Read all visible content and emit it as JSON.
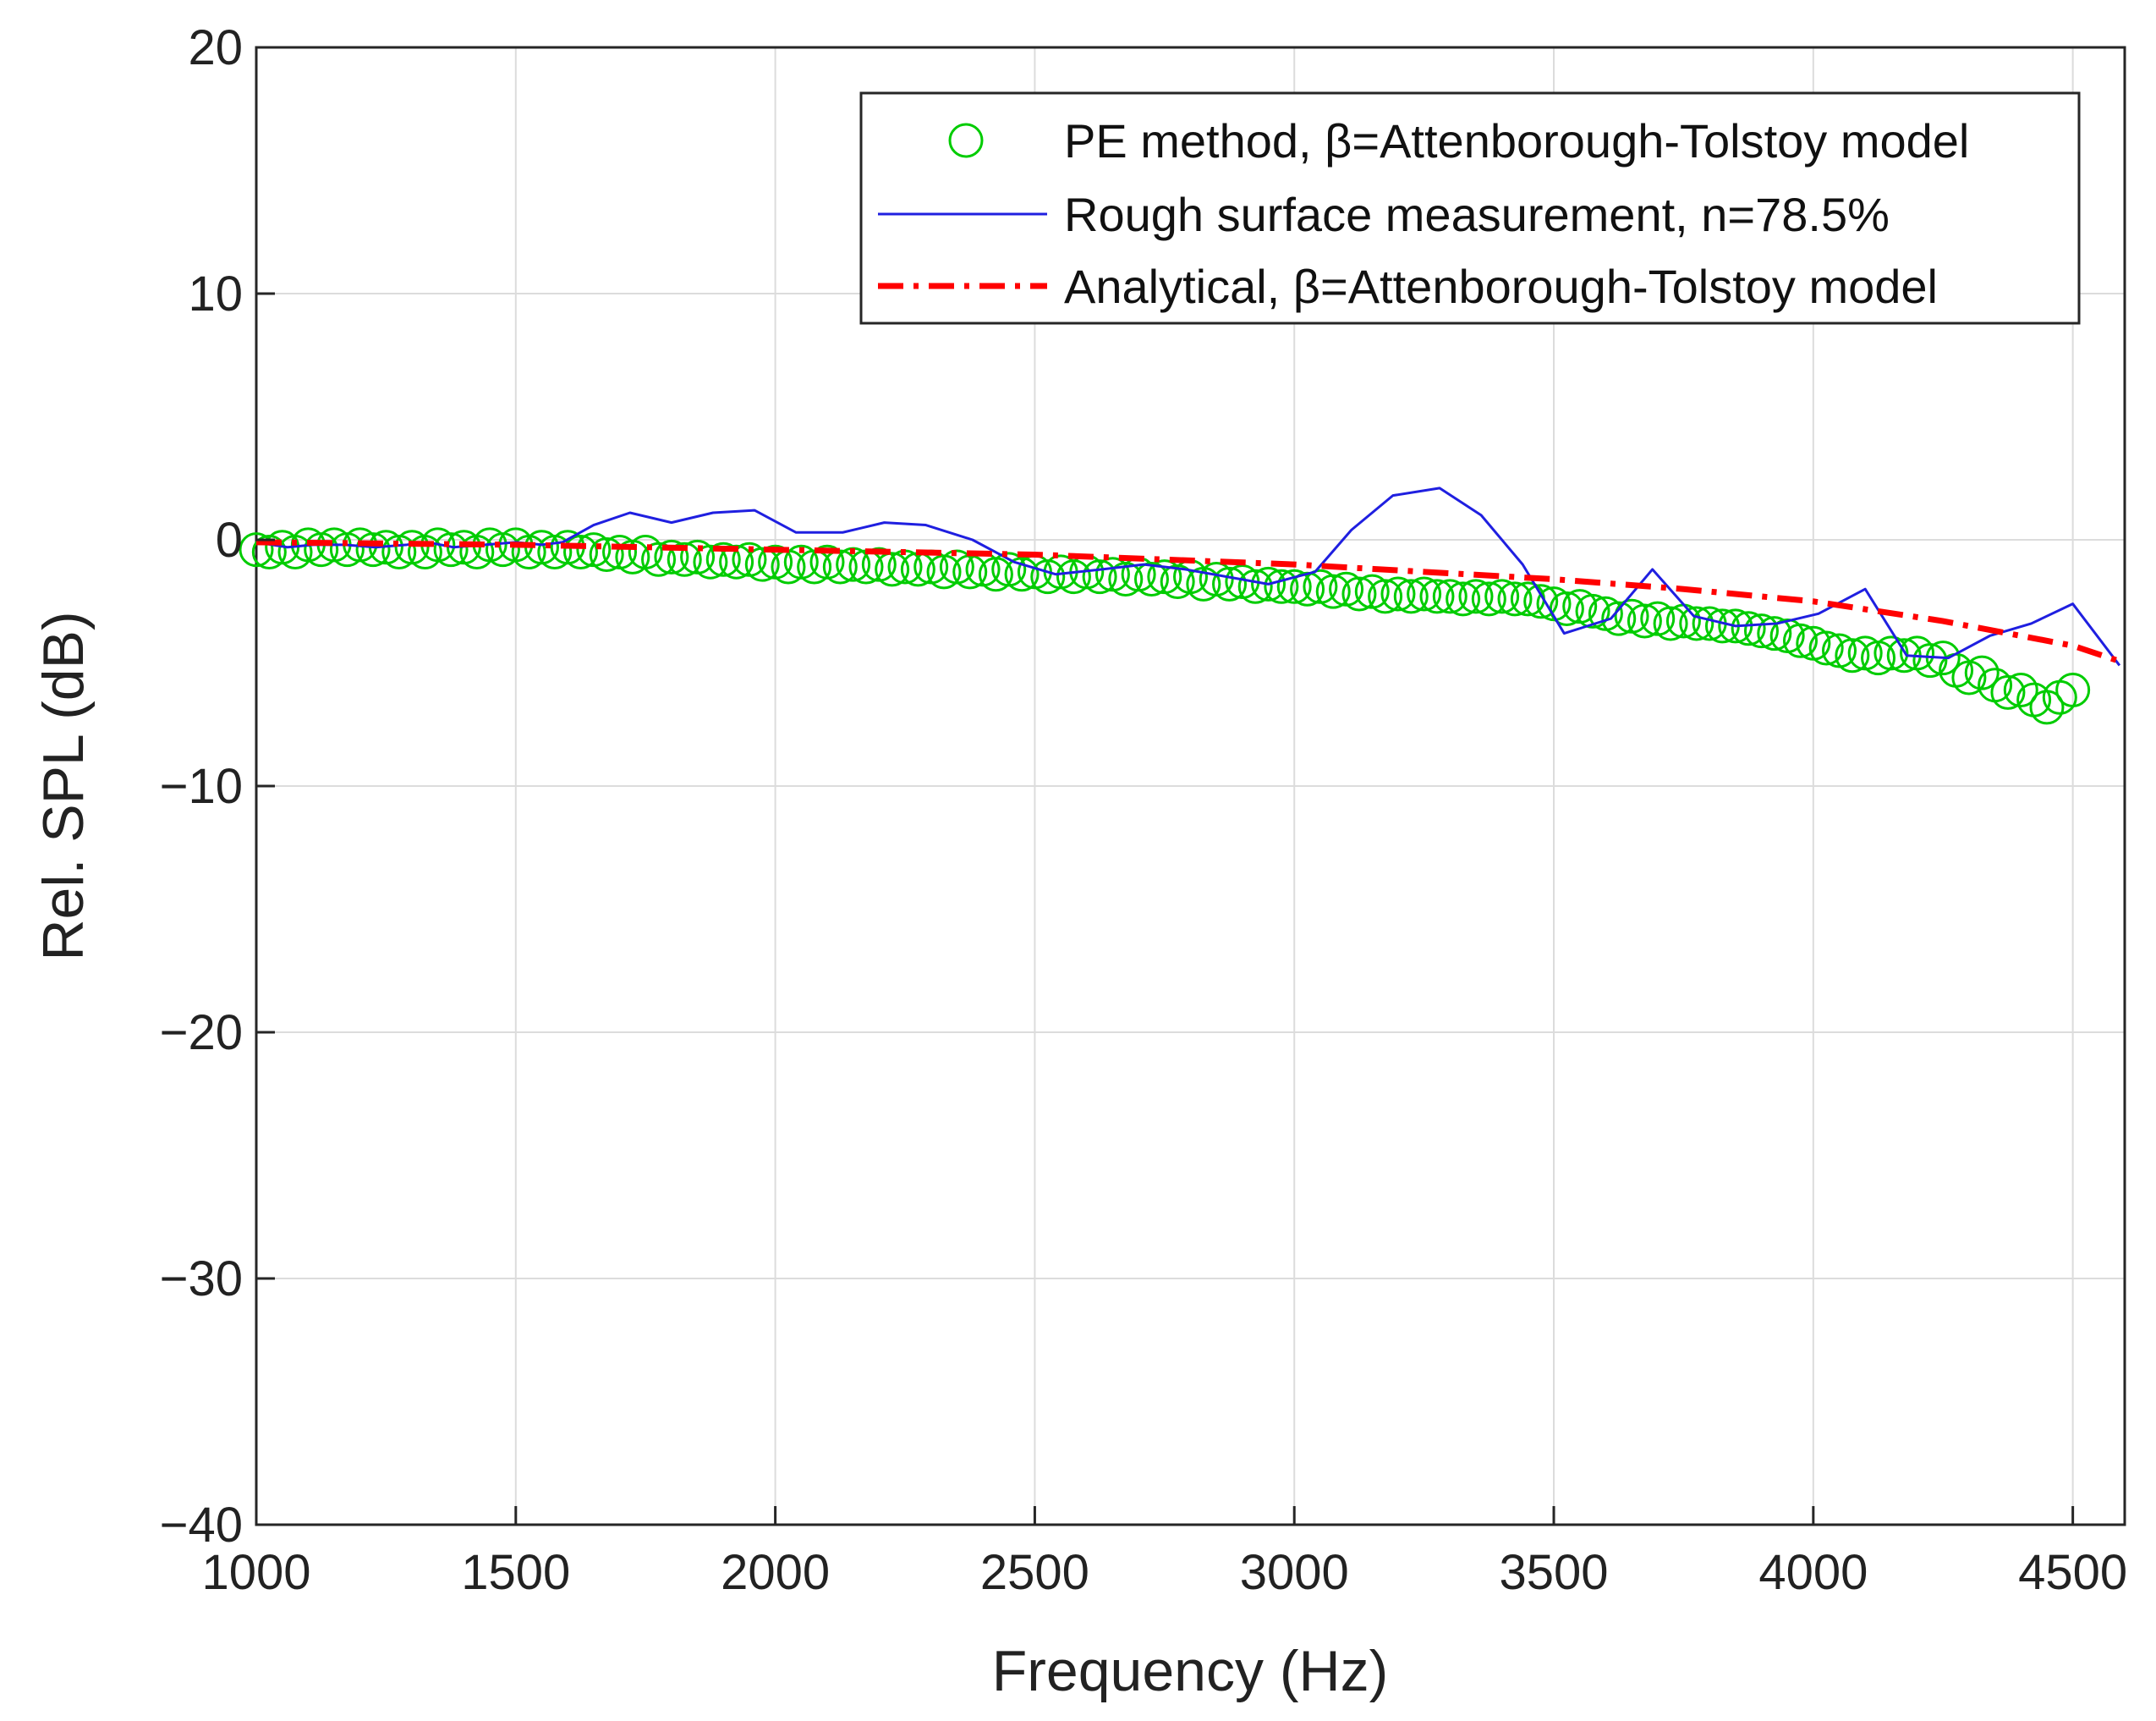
{
  "chart_data": {
    "type": "line",
    "title": "",
    "xlabel": "Frequency (Hz)",
    "ylabel": "Rel. SPL (dB)",
    "xlim": [
      1000,
      4600
    ],
    "ylim": [
      -40,
      20
    ],
    "xticks": [
      1000,
      1500,
      2000,
      2500,
      3000,
      3500,
      4000,
      4500
    ],
    "yticks": [
      -40,
      -30,
      -20,
      -10,
      0,
      10,
      20
    ],
    "xtick_labels": [
      "1000",
      "1500",
      "2000",
      "2500",
      "3000",
      "3500",
      "4000",
      "4500"
    ],
    "ytick_labels": [
      "−40",
      "−30",
      "−20",
      "−10",
      "0",
      "10",
      "20"
    ],
    "grid": true,
    "legend_position": "top-right",
    "colors": {
      "pe": "#00cc00",
      "measurement": "#1f1fe0",
      "analytical": "#ff0000",
      "axis": "#262626",
      "grid": "#dcdcdc"
    },
    "series": [
      {
        "name": "PE method, β=Attenborough-Tolstoy model",
        "style": "circles",
        "x_start": 1000,
        "x_step": 25,
        "y": [
          -0.4,
          -0.5,
          -0.3,
          -0.5,
          -0.2,
          -0.4,
          -0.2,
          -0.4,
          -0.2,
          -0.4,
          -0.3,
          -0.5,
          -0.3,
          -0.5,
          -0.2,
          -0.4,
          -0.3,
          -0.5,
          -0.2,
          -0.4,
          -0.2,
          -0.5,
          -0.3,
          -0.5,
          -0.3,
          -0.5,
          -0.4,
          -0.6,
          -0.5,
          -0.7,
          -0.5,
          -0.8,
          -0.7,
          -0.8,
          -0.7,
          -0.9,
          -0.8,
          -0.9,
          -0.8,
          -1.0,
          -0.9,
          -1.1,
          -0.9,
          -1.1,
          -0.9,
          -1.1,
          -1.0,
          -1.1,
          -1.0,
          -1.2,
          -1.1,
          -1.2,
          -1.1,
          -1.3,
          -1.1,
          -1.3,
          -1.2,
          -1.4,
          -1.2,
          -1.4,
          -1.3,
          -1.5,
          -1.3,
          -1.5,
          -1.3,
          -1.5,
          -1.4,
          -1.6,
          -1.4,
          -1.6,
          -1.5,
          -1.7,
          -1.5,
          -1.8,
          -1.6,
          -1.8,
          -1.7,
          -1.9,
          -1.8,
          -1.9,
          -1.9,
          -2.0,
          -1.9,
          -2.1,
          -2.0,
          -2.2,
          -2.1,
          -2.3,
          -2.2,
          -2.3,
          -2.2,
          -2.3,
          -2.3,
          -2.4,
          -2.3,
          -2.4,
          -2.3,
          -2.4,
          -2.4,
          -2.5,
          -2.6,
          -2.8,
          -2.7,
          -2.9,
          -3.0,
          -3.2,
          -3.1,
          -3.3,
          -3.2,
          -3.4,
          -3.3,
          -3.4,
          -3.4,
          -3.5,
          -3.5,
          -3.6,
          -3.7,
          -3.8,
          -3.9,
          -4.1,
          -4.2,
          -4.4,
          -4.5,
          -4.7,
          -4.6,
          -4.8,
          -4.6,
          -4.7,
          -4.6,
          -4.9,
          -4.8,
          -5.3,
          -5.6,
          -5.4,
          -5.9,
          -6.2,
          -6.1,
          -6.5,
          -6.8,
          -6.4,
          -6.1
        ]
      },
      {
        "name": "Rough surface measurement, n=78.5%",
        "style": "solid",
        "x": [
          1000,
          1060,
          1110,
          1170,
          1230,
          1290,
          1330,
          1380,
          1440,
          1500,
          1550,
          1590,
          1650,
          1720,
          1800,
          1880,
          1960,
          2040,
          2130,
          2210,
          2290,
          2380,
          2460,
          2540,
          2630,
          2710,
          2790,
          2870,
          2950,
          3040,
          3110,
          3190,
          3280,
          3360,
          3440,
          3520,
          3610,
          3690,
          3770,
          3850,
          3930,
          4010,
          4100,
          4180,
          4260,
          4340,
          4420,
          4500,
          4590
        ],
        "y": [
          -0.1,
          -0.3,
          -0.2,
          -0.2,
          -0.3,
          -0.2,
          -0.1,
          -0.3,
          -0.2,
          -0.1,
          -0.2,
          -0.1,
          0.6,
          1.1,
          0.7,
          1.1,
          1.2,
          0.3,
          0.3,
          0.7,
          0.6,
          0.0,
          -0.9,
          -1.4,
          -1.2,
          -1.0,
          -1.2,
          -1.5,
          -1.8,
          -1.3,
          0.4,
          1.8,
          2.1,
          1.0,
          -1.0,
          -3.8,
          -3.2,
          -1.2,
          -3.1,
          -3.5,
          -3.4,
          -3.0,
          -2.0,
          -4.7,
          -4.8,
          -3.9,
          -3.4,
          -2.6,
          -5.1
        ]
      },
      {
        "name": "Analytical, β=Attenborough-Tolstoy model",
        "style": "dashdot",
        "x": [
          1000,
          1250,
          1500,
          1750,
          2000,
          2250,
          2500,
          2750,
          3000,
          3250,
          3500,
          3750,
          4000,
          4250,
          4500,
          4600
        ],
        "y": [
          -0.1,
          -0.15,
          -0.2,
          -0.3,
          -0.4,
          -0.5,
          -0.6,
          -0.8,
          -1.0,
          -1.3,
          -1.6,
          -2.0,
          -2.5,
          -3.3,
          -4.3,
          -5.0
        ]
      }
    ]
  }
}
